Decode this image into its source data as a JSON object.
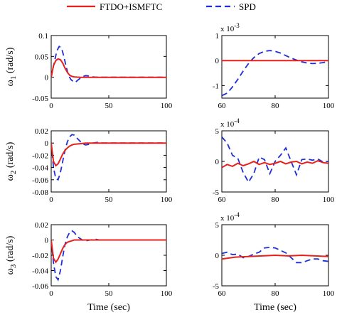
{
  "legend": {
    "items": [
      {
        "label": "FTDO+ISMFTC",
        "color": "#e8201c",
        "dash": "solid"
      },
      {
        "label": "SPD",
        "color": "#1f2fd6",
        "dash": "dashed"
      }
    ]
  },
  "chart_data": [
    {
      "type": "line",
      "ylabel_prefix": "ω",
      "ylabel_sub": "1",
      "ylabel_suffix": " (rad/s)",
      "xlabel": "",
      "xlim": [
        0,
        100
      ],
      "ylim": [
        -0.05,
        0.1
      ],
      "xticks": [
        "0",
        "50",
        "100"
      ],
      "xtick_values": [
        0,
        50,
        100
      ],
      "yticks": [
        "-0.05",
        "0",
        "0.05",
        "0.1"
      ],
      "ytick_values": [
        -0.05,
        0,
        0.05,
        0.1
      ],
      "scale_label": "",
      "series": [
        {
          "name": "FTDO+ISMFTC",
          "x": [
            0,
            2,
            4,
            6,
            8,
            10,
            12,
            14,
            16,
            18,
            20,
            25,
            30,
            40,
            60,
            80,
            100
          ],
          "y": [
            0,
            0.028,
            0.04,
            0.044,
            0.042,
            0.034,
            0.022,
            0.012,
            0.005,
            0.002,
            0.001,
            0,
            0,
            0,
            0,
            0,
            0
          ]
        },
        {
          "name": "SPD",
          "x": [
            0,
            3,
            5,
            7,
            9,
            11,
            13,
            15,
            17,
            19,
            21,
            23,
            25,
            27,
            30,
            33,
            36,
            40,
            50,
            60,
            70,
            80,
            100
          ],
          "y": [
            0,
            0.04,
            0.064,
            0.074,
            0.07,
            0.05,
            0.025,
            0.005,
            -0.005,
            -0.01,
            -0.012,
            -0.007,
            -0.003,
            0.001,
            0.004,
            0.003,
            0.001,
            0,
            0,
            0,
            0,
            0,
            0
          ]
        }
      ]
    },
    {
      "type": "line",
      "ylabel_prefix": "",
      "ylabel_sub": "",
      "ylabel_suffix": "",
      "xlabel": "",
      "xlim": [
        60,
        100
      ],
      "ylim": [
        -1.5,
        1.0
      ],
      "xticks": [
        "60",
        "80",
        "100"
      ],
      "xtick_values": [
        60,
        80,
        100
      ],
      "yticks": [
        "-1",
        "0",
        "1"
      ],
      "ytick_values": [
        -1,
        0,
        1
      ],
      "scale_label": "x 10",
      "scale_exp": "-3",
      "series": [
        {
          "name": "FTDO+ISMFTC",
          "x": [
            60,
            70,
            80,
            90,
            100
          ],
          "y": [
            0,
            0,
            0,
            0,
            0
          ]
        },
        {
          "name": "SPD",
          "x": [
            60,
            62,
            64,
            66,
            68,
            70,
            72,
            74,
            76,
            78,
            80,
            82,
            84,
            86,
            88,
            90,
            92,
            94,
            96,
            98,
            100
          ],
          "y": [
            -1.4,
            -1.3,
            -1.05,
            -0.75,
            -0.42,
            -0.12,
            0.12,
            0.28,
            0.37,
            0.4,
            0.37,
            0.3,
            0.2,
            0.1,
            0.02,
            -0.05,
            -0.1,
            -0.12,
            -0.11,
            -0.08,
            -0.04
          ]
        }
      ]
    },
    {
      "type": "line",
      "ylabel_prefix": "ω",
      "ylabel_sub": "2",
      "ylabel_suffix": " (rad/s)",
      "xlabel": "",
      "xlim": [
        0,
        100
      ],
      "ylim": [
        -0.08,
        0.02
      ],
      "xticks": [
        "0",
        "50",
        "100"
      ],
      "xtick_values": [
        0,
        50,
        100
      ],
      "yticks": [
        "-0.08",
        "-0.06",
        "-0.04",
        "-0.02",
        "0",
        "0.02"
      ],
      "ytick_values": [
        -0.08,
        -0.06,
        -0.04,
        -0.02,
        0,
        0.02
      ],
      "scale_label": "",
      "series": [
        {
          "name": "FTDO+ISMFTC",
          "x": [
            0,
            2,
            4,
            6,
            8,
            10,
            12,
            14,
            16,
            18,
            20,
            25,
            30,
            40,
            60,
            80,
            100
          ],
          "y": [
            0,
            -0.03,
            -0.037,
            -0.034,
            -0.026,
            -0.018,
            -0.012,
            -0.008,
            -0.005,
            -0.003,
            -0.002,
            -0.001,
            0,
            0,
            0,
            0,
            0
          ]
        },
        {
          "name": "SPD",
          "x": [
            0,
            2,
            4,
            6,
            8,
            10,
            12,
            14,
            16,
            18,
            20,
            22,
            24,
            26,
            28,
            30,
            33,
            36,
            40,
            45,
            50,
            60,
            70,
            80,
            90,
            100
          ],
          "y": [
            0,
            -0.04,
            -0.058,
            -0.06,
            -0.048,
            -0.03,
            -0.012,
            0.002,
            0.01,
            0.014,
            0.013,
            0.009,
            0.005,
            0.001,
            -0.002,
            -0.003,
            -0.002,
            0,
            0.001,
            0,
            0,
            0,
            0,
            0,
            0,
            0
          ]
        }
      ]
    },
    {
      "type": "line",
      "ylabel_prefix": "",
      "ylabel_sub": "",
      "ylabel_suffix": "",
      "xlabel": "",
      "xlim": [
        60,
        100
      ],
      "ylim": [
        -5,
        5
      ],
      "xticks": [
        "60",
        "80",
        "100"
      ],
      "xtick_values": [
        60,
        80,
        100
      ],
      "yticks": [
        "-5",
        "0",
        "5"
      ],
      "ytick_values": [
        -5,
        0,
        5
      ],
      "scale_label": "x 10",
      "scale_exp": "-4",
      "series": [
        {
          "name": "FTDO+ISMFTC",
          "x": [
            60,
            62,
            64,
            66,
            68,
            70,
            72,
            74,
            76,
            78,
            80,
            82,
            84,
            86,
            88,
            90,
            92,
            94,
            96,
            98,
            100
          ],
          "y": [
            -1.0,
            -0.5,
            -0.8,
            -0.3,
            -0.7,
            -0.4,
            0.0,
            -0.5,
            -0.2,
            -0.5,
            -0.3,
            0.0,
            -0.4,
            -0.1,
            0.0,
            -0.4,
            -0.1,
            -0.3,
            0.1,
            -0.2,
            -0.3
          ]
        },
        {
          "name": "SPD",
          "x": [
            60,
            62,
            64,
            66,
            68,
            70,
            72,
            74,
            76,
            78,
            80,
            82,
            84,
            86,
            88,
            90,
            92,
            94,
            96,
            98,
            100
          ],
          "y": [
            4.0,
            3.0,
            1.0,
            0.5,
            -1.8,
            -3.4,
            -2.0,
            0.7,
            0.3,
            -2.0,
            0.0,
            1.0,
            2.2,
            0.0,
            -2.2,
            0.3,
            0.4,
            0.2,
            0.4,
            -0.1,
            0.0
          ]
        }
      ]
    },
    {
      "type": "line",
      "ylabel_prefix": "ω",
      "ylabel_sub": "3",
      "ylabel_suffix": " (rad/s)",
      "xlabel": "Time (sec)",
      "xlim": [
        0,
        100
      ],
      "ylim": [
        -0.06,
        0.02
      ],
      "xticks": [
        "0",
        "50",
        "100"
      ],
      "xtick_values": [
        0,
        50,
        100
      ],
      "yticks": [
        "-0.06",
        "-0.04",
        "-0.02",
        "0",
        "0.02"
      ],
      "ytick_values": [
        -0.06,
        -0.04,
        -0.02,
        0,
        0.02
      ],
      "scale_label": "",
      "series": [
        {
          "name": "FTDO+ISMFTC",
          "x": [
            0,
            2,
            4,
            6,
            8,
            10,
            12,
            14,
            16,
            18,
            20,
            25,
            30,
            40,
            60,
            80,
            100
          ],
          "y": [
            0,
            -0.024,
            -0.029,
            -0.025,
            -0.018,
            -0.011,
            -0.006,
            -0.003,
            -0.002,
            -0.001,
            0,
            0,
            0,
            0,
            0,
            0,
            0
          ]
        },
        {
          "name": "SPD",
          "x": [
            0,
            2,
            4,
            6,
            8,
            10,
            12,
            14,
            16,
            18,
            20,
            22,
            24,
            26,
            28,
            30,
            34,
            38,
            42,
            50,
            60,
            70,
            80,
            90,
            100
          ],
          "y": [
            0,
            -0.03,
            -0.048,
            -0.052,
            -0.04,
            -0.022,
            -0.006,
            0.004,
            0.01,
            0.012,
            0.01,
            0.006,
            0.003,
            0.001,
            -0.001,
            -0.001,
            0,
            0.001,
            0,
            0,
            0,
            0,
            0,
            0,
            0
          ]
        }
      ]
    },
    {
      "type": "line",
      "ylabel_prefix": "",
      "ylabel_sub": "",
      "ylabel_suffix": "",
      "xlabel": "Time (sec)",
      "xlim": [
        60,
        100
      ],
      "ylim": [
        -5,
        5
      ],
      "xticks": [
        "60",
        "80",
        "100"
      ],
      "xtick_values": [
        60,
        80,
        100
      ],
      "yticks": [
        "-5",
        "0",
        "5"
      ],
      "ytick_values": [
        -5,
        0,
        5
      ],
      "scale_label": "x 10",
      "scale_exp": "-4",
      "series": [
        {
          "name": "FTDO+ISMFTC",
          "x": [
            60,
            65,
            70,
            75,
            80,
            85,
            90,
            95,
            100
          ],
          "y": [
            -0.6,
            -0.3,
            -0.2,
            -0.1,
            0.0,
            -0.1,
            0.0,
            -0.1,
            -0.2
          ]
        },
        {
          "name": "SPD",
          "x": [
            60,
            62,
            64,
            66,
            68,
            70,
            72,
            74,
            76,
            78,
            80,
            82,
            84,
            86,
            88,
            90,
            92,
            94,
            96,
            98,
            100
          ],
          "y": [
            0.3,
            0.5,
            0.1,
            0.2,
            -0.4,
            -0.2,
            0.2,
            0.5,
            1.2,
            1.3,
            1.2,
            0.8,
            0.4,
            -0.4,
            -1.2,
            -1.2,
            -0.9,
            -0.6,
            -0.6,
            -0.9,
            -1.0
          ]
        }
      ]
    }
  ]
}
